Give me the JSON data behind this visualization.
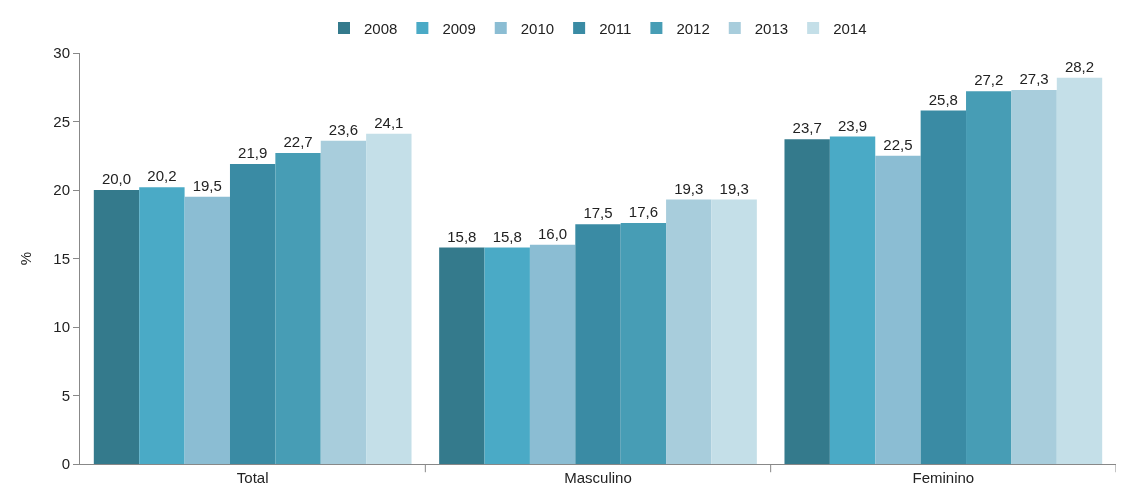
{
  "chart_data": {
    "type": "bar",
    "ylabel": "%",
    "categories": [
      "Total",
      "Masculino",
      "Feminino"
    ],
    "ylim": [
      0,
      30
    ],
    "yticks": [
      0,
      5,
      10,
      15,
      20,
      25,
      30
    ],
    "grid": false,
    "legend": "top",
    "series": [
      {
        "name": "2008",
        "color": "#347a8c",
        "values": [
          20.0,
          15.8,
          23.7
        ],
        "value_labels": [
          "20,0",
          "15,8",
          "23,7"
        ]
      },
      {
        "name": "2009",
        "color": "#4aaac6",
        "values": [
          20.2,
          15.8,
          23.9
        ],
        "value_labels": [
          "20,2",
          "15,8",
          "23,9"
        ]
      },
      {
        "name": "2010",
        "color": "#8bbdd3",
        "values": [
          19.5,
          16.0,
          22.5
        ],
        "value_labels": [
          "19,5",
          "16,0",
          "22,5"
        ]
      },
      {
        "name": "2011",
        "color": "#3a8ba4",
        "values": [
          21.9,
          17.5,
          25.8
        ],
        "value_labels": [
          "21,9",
          "17,5",
          "25,8"
        ]
      },
      {
        "name": "2012",
        "color": "#479db5",
        "values": [
          22.7,
          17.6,
          27.2
        ],
        "value_labels": [
          "22,7",
          "17,6",
          "27,2"
        ]
      },
      {
        "name": "2013",
        "color": "#a8cddc",
        "values": [
          23.6,
          19.3,
          27.3
        ],
        "value_labels": [
          "23,6",
          "19,3",
          "27,3"
        ]
      },
      {
        "name": "2014",
        "color": "#c4dfe8",
        "values": [
          24.1,
          19.3,
          28.2
        ],
        "value_labels": [
          "24,1",
          "19,3",
          "28,2"
        ]
      }
    ]
  }
}
